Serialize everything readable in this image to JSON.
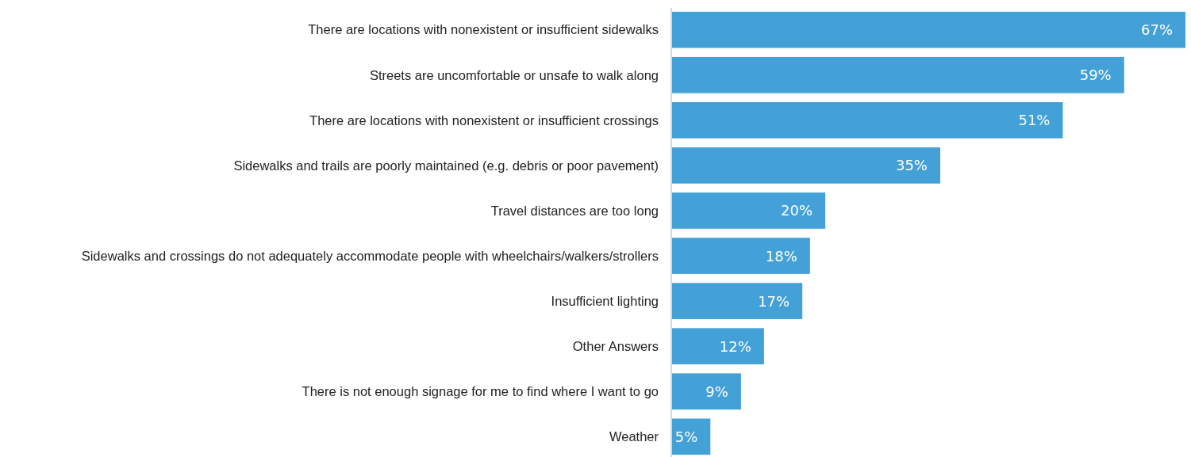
{
  "chart_data": {
    "type": "bar",
    "orientation": "horizontal",
    "color": "#43a1d7",
    "categories": [
      "There are locations with nonexistent or insufficient sidewalks",
      "Streets are uncomfortable or unsafe to walk along",
      "There are locations with nonexistent or insufficient crossings",
      "Sidewalks and trails are poorly maintained (e.g. debris or poor pavement)",
      "Travel distances are too long",
      "Sidewalks and crossings do not adequately accommodate people with wheelchairs/walkers/strollers",
      "Insufficient lighting",
      "Other Answers",
      "There is not enough signage for me to find where I want to go",
      "Weather"
    ],
    "values": [
      67,
      59,
      51,
      35,
      20,
      18,
      17,
      12,
      9,
      5
    ],
    "value_labels": [
      "67%",
      "59%",
      "51%",
      "35%",
      "20%",
      "18%",
      "17%",
      "12%",
      "9%",
      "5%"
    ]
  }
}
